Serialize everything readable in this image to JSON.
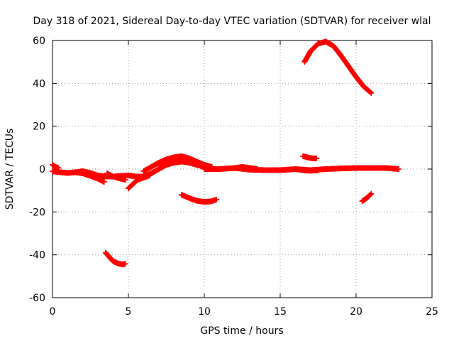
{
  "chart_data": {
    "type": "scatter",
    "title": "Day 318 of 2021, Sidereal Day-to-day VTEC variation (SDTVAR) for receiver wlal",
    "xlabel": "GPS time / hours",
    "ylabel": "SDTVAR / TECUs",
    "xlim": [
      0,
      25
    ],
    "ylim": [
      -60,
      60
    ],
    "xticks": [
      0,
      5,
      10,
      15,
      20,
      25
    ],
    "yticks": [
      -60,
      -40,
      -20,
      0,
      20,
      40,
      60
    ],
    "grid": true,
    "marker_color": "#ff0000",
    "series": [
      {
        "name": "s1",
        "x": [
          0.0,
          0.5,
          1.0,
          1.5,
          2.0,
          2.5,
          3.0,
          3.5,
          4.0,
          4.5,
          5.0
        ],
        "y": [
          -1.0,
          -1.5,
          -1.8,
          -1.5,
          -1.0,
          -1.8,
          -3.0,
          -3.5,
          -3.5,
          -3.2,
          -3.0
        ]
      },
      {
        "name": "s2",
        "x": [
          0.0,
          0.2,
          0.4
        ],
        "y": [
          2.0,
          1.0,
          0.5
        ]
      },
      {
        "name": "s3",
        "x": [
          1.5,
          2.0,
          2.5,
          3.0,
          3.4
        ],
        "y": [
          -1.5,
          -2.0,
          -3.2,
          -4.5,
          -6.0
        ]
      },
      {
        "name": "s4",
        "x": [
          3.6,
          4.0,
          4.5,
          4.8
        ],
        "y": [
          -2.0,
          -3.5,
          -4.5,
          -5.0
        ]
      },
      {
        "name": "s5",
        "x": [
          5.0,
          5.3,
          5.6,
          6.0,
          6.4
        ],
        "y": [
          -9.0,
          -7.0,
          -5.0,
          -4.0,
          -3.0
        ]
      },
      {
        "name": "s6",
        "x": [
          5.0,
          5.5,
          6.0,
          6.5,
          7.0,
          7.5,
          8.0,
          8.5,
          9.0,
          9.5,
          10.0,
          10.5
        ],
        "y": [
          -3.0,
          -3.5,
          -3.5,
          -2.0,
          0.0,
          2.0,
          3.0,
          3.5,
          3.0,
          2.0,
          1.0,
          0.0
        ]
      },
      {
        "name": "s7",
        "x": [
          6.0,
          6.5,
          7.0,
          7.5,
          8.0,
          8.5,
          9.0,
          9.5,
          10.0,
          10.5
        ],
        "y": [
          -1.0,
          1.0,
          3.0,
          4.5,
          5.5,
          6.0,
          5.0,
          3.5,
          2.0,
          1.0
        ]
      },
      {
        "name": "s8",
        "x": [
          7.0,
          7.5,
          8.0,
          8.5,
          9.0,
          9.5
        ],
        "y": [
          1.5,
          2.5,
          4.0,
          5.0,
          4.5,
          3.0
        ]
      },
      {
        "name": "s9",
        "x": [
          10.0,
          11.0,
          12.0,
          13.0,
          14.0,
          15.0,
          16.0,
          17.0,
          18.0,
          19.0,
          20.0,
          21.0,
          22.0,
          22.8
        ],
        "y": [
          0.0,
          0.0,
          0.5,
          -0.3,
          -0.5,
          -0.5,
          0.0,
          -0.5,
          0.0,
          0.3,
          0.5,
          0.5,
          0.5,
          0.0
        ]
      },
      {
        "name": "s10",
        "x": [
          12.0,
          12.5,
          13.0,
          13.5
        ],
        "y": [
          0.5,
          1.0,
          0.5,
          0.0
        ]
      },
      {
        "name": "s11",
        "x": [
          16.0,
          16.5,
          17.0,
          17.5
        ],
        "y": [
          0.0,
          -0.5,
          -0.8,
          -0.5
        ]
      },
      {
        "name": "s12",
        "x": [
          16.5,
          16.8,
          17.1,
          17.4
        ],
        "y": [
          6.0,
          5.5,
          5.0,
          5.0
        ]
      },
      {
        "name": "s13",
        "x": [
          3.5,
          3.8,
          4.0,
          4.3,
          4.6,
          4.8
        ],
        "y": [
          -39.0,
          -41.5,
          -43.0,
          -44.0,
          -44.5,
          -44.2
        ]
      },
      {
        "name": "s14",
        "x": [
          8.5,
          9.0,
          9.5,
          10.0,
          10.5,
          10.8
        ],
        "y": [
          -12.0,
          -13.5,
          -14.8,
          -15.3,
          -15.0,
          -14.2
        ]
      },
      {
        "name": "s15",
        "x": [
          16.6,
          17.0,
          17.5,
          18.0,
          18.5,
          19.0,
          19.5,
          20.0,
          20.5,
          21.0
        ],
        "y": [
          50.0,
          55.0,
          58.5,
          59.5,
          57.5,
          53.0,
          48.0,
          43.0,
          38.5,
          35.5
        ]
      },
      {
        "name": "s16",
        "x": [
          20.4,
          20.7,
          21.0
        ],
        "y": [
          -15.0,
          -13.5,
          -11.5
        ]
      }
    ]
  }
}
